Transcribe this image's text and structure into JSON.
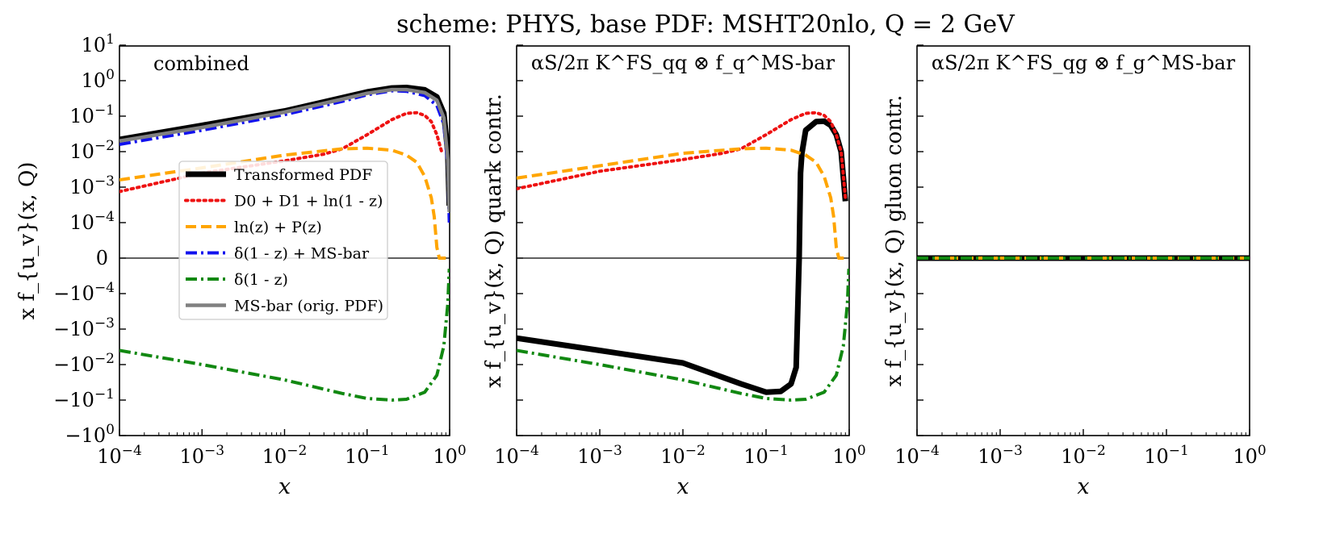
{
  "figure_title": "scheme: PHYS, base PDF: MSHT20nlo, Q = 2 GeV",
  "chart_data": [
    {
      "type": "line",
      "panel": "combined",
      "annotation": "combined",
      "xscale": "log",
      "xlim": [
        0.0001,
        1
      ],
      "yscale": "symlog",
      "ylim": [
        -1,
        10
      ],
      "linthresh": 0.0001,
      "xlabel": "x",
      "ylabel": "x f_{u_v}(x, Q)",
      "xtick_labels": [
        "10^-4",
        "10^-3",
        "10^-2",
        "10^-1",
        "10^0"
      ],
      "ytick_labels": [
        "10^1",
        "10^0",
        "10^-1",
        "10^-2",
        "10^-3",
        "10^-4",
        "0",
        "-10^-4",
        "-10^-3",
        "-10^-2",
        "-10^-1",
        "-10^0"
      ],
      "legend_position": "center-left",
      "series": [
        {
          "name": "Transformed PDF",
          "color": "#000000",
          "style": "solid",
          "x": [
            0.0001,
            0.001,
            0.01,
            0.05,
            0.1,
            0.2,
            0.3,
            0.5,
            0.7,
            0.85,
            0.95,
            0.99
          ],
          "y": [
            0.022,
            0.055,
            0.14,
            0.33,
            0.48,
            0.62,
            0.64,
            0.55,
            0.35,
            0.12,
            0.01,
            0.0003
          ]
        },
        {
          "name": "D0 + D1 + ln(1 - z)",
          "color": "#ee1111",
          "style": "dotted",
          "x": [
            0.0001,
            0.001,
            0.01,
            0.03,
            0.05,
            0.1,
            0.2,
            0.3,
            0.4,
            0.5,
            0.6,
            0.7,
            0.8
          ],
          "y": [
            0.00075,
            0.0025,
            0.0055,
            0.0085,
            0.012,
            0.03,
            0.08,
            0.12,
            0.125,
            0.105,
            0.07,
            0.03,
            0.01
          ]
        },
        {
          "name": "ln(z) + P(z)",
          "color": "#ffa500",
          "style": "dashed",
          "x": [
            0.0001,
            0.001,
            0.01,
            0.05,
            0.1,
            0.2,
            0.3,
            0.4,
            0.5,
            0.6,
            0.65,
            0.7,
            0.75,
            0.8,
            0.9
          ],
          "y": [
            0.0016,
            0.0035,
            0.008,
            0.012,
            0.0125,
            0.011,
            0.008,
            0.005,
            0.002,
            0.0005,
            0.00015,
            3e-05,
            0.0,
            0.0,
            0.0
          ]
        },
        {
          "name": "δ(1 - z) + MS-bar",
          "color": "#1111ee",
          "style": "dashdot",
          "x": [
            0.0001,
            0.001,
            0.01,
            0.05,
            0.1,
            0.2,
            0.3,
            0.5,
            0.7,
            0.85,
            0.95,
            0.99
          ],
          "y": [
            0.016,
            0.04,
            0.11,
            0.26,
            0.4,
            0.52,
            0.5,
            0.38,
            0.2,
            0.06,
            0.004,
            0.0001
          ]
        },
        {
          "name": "δ(1 - z)",
          "color": "#118811",
          "style": "dashdot",
          "x": [
            0.0001,
            0.001,
            0.01,
            0.05,
            0.1,
            0.2,
            0.3,
            0.5,
            0.7,
            0.85,
            0.95,
            0.99
          ],
          "y": [
            -0.004,
            -0.01,
            -0.027,
            -0.065,
            -0.09,
            -0.1,
            -0.095,
            -0.06,
            -0.02,
            -0.003,
            -0.0002,
            -3e-05
          ]
        },
        {
          "name": "MS-bar (orig. PDF)",
          "color": "#808080",
          "style": "solid",
          "x": [
            0.0001,
            0.001,
            0.01,
            0.05,
            0.1,
            0.2,
            0.3,
            0.5,
            0.7,
            0.85,
            0.95,
            0.99
          ],
          "y": [
            0.02,
            0.048,
            0.13,
            0.3,
            0.44,
            0.56,
            0.56,
            0.46,
            0.28,
            0.09,
            0.006,
            0.0002
          ]
        }
      ]
    },
    {
      "type": "line",
      "panel": "quark",
      "annotation": "αS/2π K^FS_qq ⊗ f_q^MS-bar",
      "xscale": "log",
      "xlim": [
        0.0001,
        1
      ],
      "yscale": "symlog",
      "ylim": [
        -1,
        10
      ],
      "linthresh": 0.0001,
      "xlabel": "x",
      "ylabel": "x f_{u_v}(x, Q) quark contr.",
      "xtick_labels": [
        "10^-4",
        "10^-3",
        "10^-2",
        "10^-1",
        "10^0"
      ],
      "series": [
        {
          "name": "Transformed PDF",
          "color": "#000000",
          "style": "solid",
          "x": [
            0.0001,
            0.001,
            0.01,
            0.05,
            0.1,
            0.15,
            0.2,
            0.23,
            0.25,
            0.26,
            0.27,
            0.3,
            0.4,
            0.5,
            0.6,
            0.7,
            0.8,
            0.9
          ],
          "y": [
            -0.0018,
            -0.004,
            -0.009,
            -0.035,
            -0.06,
            -0.057,
            -0.035,
            -0.012,
            0.0,
            0.0025,
            0.009,
            0.04,
            0.07,
            0.072,
            0.055,
            0.03,
            0.01,
            0.0004
          ]
        },
        {
          "name": "D0 + D1 + ln(1 - z)",
          "color": "#ee1111",
          "style": "dotted",
          "x": [
            0.0001,
            0.001,
            0.01,
            0.03,
            0.05,
            0.1,
            0.2,
            0.3,
            0.4,
            0.5,
            0.6,
            0.7,
            0.8,
            0.9
          ],
          "y": [
            0.0009,
            0.0028,
            0.006,
            0.009,
            0.012,
            0.03,
            0.08,
            0.12,
            0.125,
            0.105,
            0.07,
            0.03,
            0.01,
            0.0005
          ]
        },
        {
          "name": "ln(z) + P(z)",
          "color": "#ffa500",
          "style": "dashed",
          "x": [
            0.0001,
            0.001,
            0.01,
            0.05,
            0.1,
            0.2,
            0.3,
            0.4,
            0.5,
            0.6,
            0.65,
            0.7,
            0.75,
            0.8,
            0.9
          ],
          "y": [
            0.0018,
            0.004,
            0.009,
            0.012,
            0.0125,
            0.011,
            0.008,
            0.005,
            0.002,
            0.0005,
            0.00015,
            3e-05,
            0.0,
            0.0,
            0.0
          ]
        },
        {
          "name": "δ(1 - z)",
          "color": "#118811",
          "style": "dashdot",
          "x": [
            0.0001,
            0.001,
            0.01,
            0.05,
            0.1,
            0.2,
            0.3,
            0.5,
            0.7,
            0.85,
            0.95,
            0.99
          ],
          "y": [
            -0.004,
            -0.01,
            -0.027,
            -0.065,
            -0.09,
            -0.1,
            -0.095,
            -0.06,
            -0.02,
            -0.003,
            -0.0002,
            -3e-05
          ]
        }
      ]
    },
    {
      "type": "line",
      "panel": "gluon",
      "annotation": "αS/2π K^FS_qg ⊗ f_g^MS-bar",
      "xscale": "log",
      "xlim": [
        0.0001,
        1
      ],
      "yscale": "symlog",
      "ylim": [
        -1,
        10
      ],
      "linthresh": 0.0001,
      "xlabel": "x",
      "ylabel": "x f_{u_v}(x, Q) gluon contr.",
      "xtick_labels": [
        "10^-4",
        "10^-3",
        "10^-2",
        "10^-1",
        "10^0"
      ],
      "series": [
        {
          "name": "Transformed PDF",
          "color": "#000000",
          "style": "solid",
          "x": [
            0.0001,
            1
          ],
          "y": [
            0,
            0
          ]
        },
        {
          "name": "ln(z) + P(z)",
          "color": "#ffa500",
          "style": "dashed",
          "x": [
            0.0001,
            1
          ],
          "y": [
            0,
            0
          ]
        },
        {
          "name": "δ(1 - z)",
          "color": "#118811",
          "style": "dashdot",
          "x": [
            0.0001,
            1
          ],
          "y": [
            0,
            0
          ]
        }
      ]
    }
  ]
}
